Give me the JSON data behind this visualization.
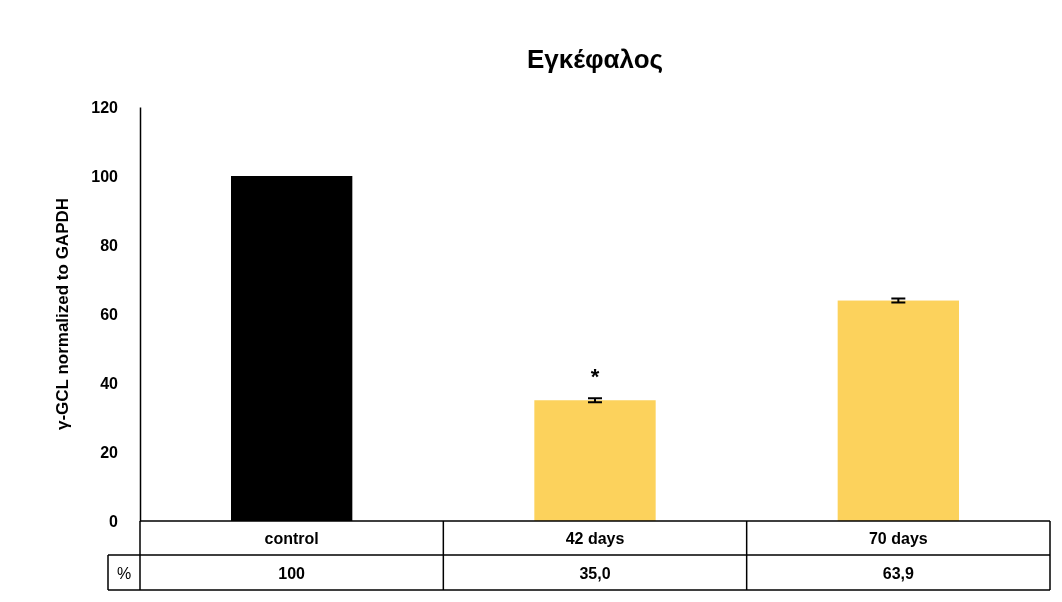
{
  "chart_data": {
    "type": "bar",
    "title": "Εγκέφαλος",
    "ylabel": "γ-GCL normalized to GAPDH",
    "categories": [
      "control",
      "42 days",
      "70 days"
    ],
    "values": [
      100,
      35.0,
      63.9
    ],
    "colors": [
      "#000000",
      "#fcd25c",
      "#fcd25c"
    ],
    "errors": [
      null,
      0.6,
      0.6
    ],
    "value_labels": [
      "100",
      "35,0",
      "63,9"
    ],
    "annotations": [
      {
        "text": "*",
        "x": "42 days",
        "y": 35.6
      },
      "%"
    ],
    "ylim": [
      0,
      120
    ],
    "yticks": [
      0,
      20,
      40,
      60,
      80,
      100,
      120
    ],
    "grid": false
  }
}
